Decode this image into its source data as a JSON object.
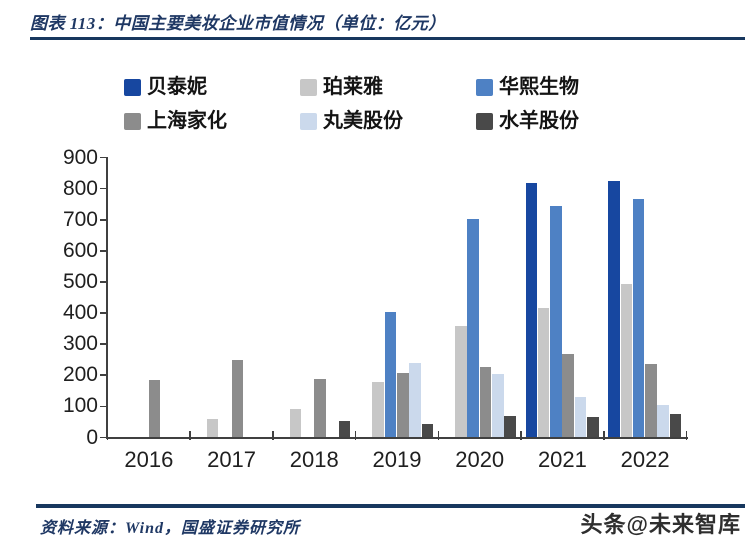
{
  "header": {
    "title": "图表 113：中国主要美妆企业市值情况（单位：亿元）"
  },
  "chart_data": {
    "type": "bar",
    "title": "中国主要美妆企业市值情况",
    "unit": "亿元",
    "categories": [
      "2016",
      "2017",
      "2018",
      "2019",
      "2020",
      "2021",
      "2022"
    ],
    "series": [
      {
        "name": "贝泰妮",
        "color": "#1747A0",
        "values": [
          null,
          null,
          null,
          null,
          null,
          818,
          825
        ]
      },
      {
        "name": "珀莱雅",
        "color": "#C7C7C7",
        "values": [
          null,
          60,
          92,
          178,
          357,
          417,
          495
        ]
      },
      {
        "name": "华熙生物",
        "color": "#4E81C4",
        "values": [
          null,
          null,
          null,
          403,
          702,
          744,
          766
        ]
      },
      {
        "name": "上海家化",
        "color": "#8C8C8C",
        "values": [
          185,
          248,
          187,
          207,
          228,
          270,
          237
        ]
      },
      {
        "name": "丸美股份",
        "color": "#CBD9EC",
        "values": [
          null,
          null,
          null,
          240,
          205,
          130,
          103
        ]
      },
      {
        "name": "水羊股份",
        "color": "#494949",
        "values": [
          null,
          null,
          54,
          42,
          70,
          65,
          75
        ]
      }
    ],
    "ylim": [
      0,
      900
    ],
    "ytick_step": 100,
    "legend_position": "top",
    "grid": false
  },
  "footer": {
    "source": "资料来源：Wind，国盛证券研究所",
    "watermark": "头条@未来智库"
  },
  "colors": {
    "accent_navy": "#17375E",
    "title_text": "#1F3864",
    "axis": "#404040",
    "label_text": "#1F1F1F"
  }
}
